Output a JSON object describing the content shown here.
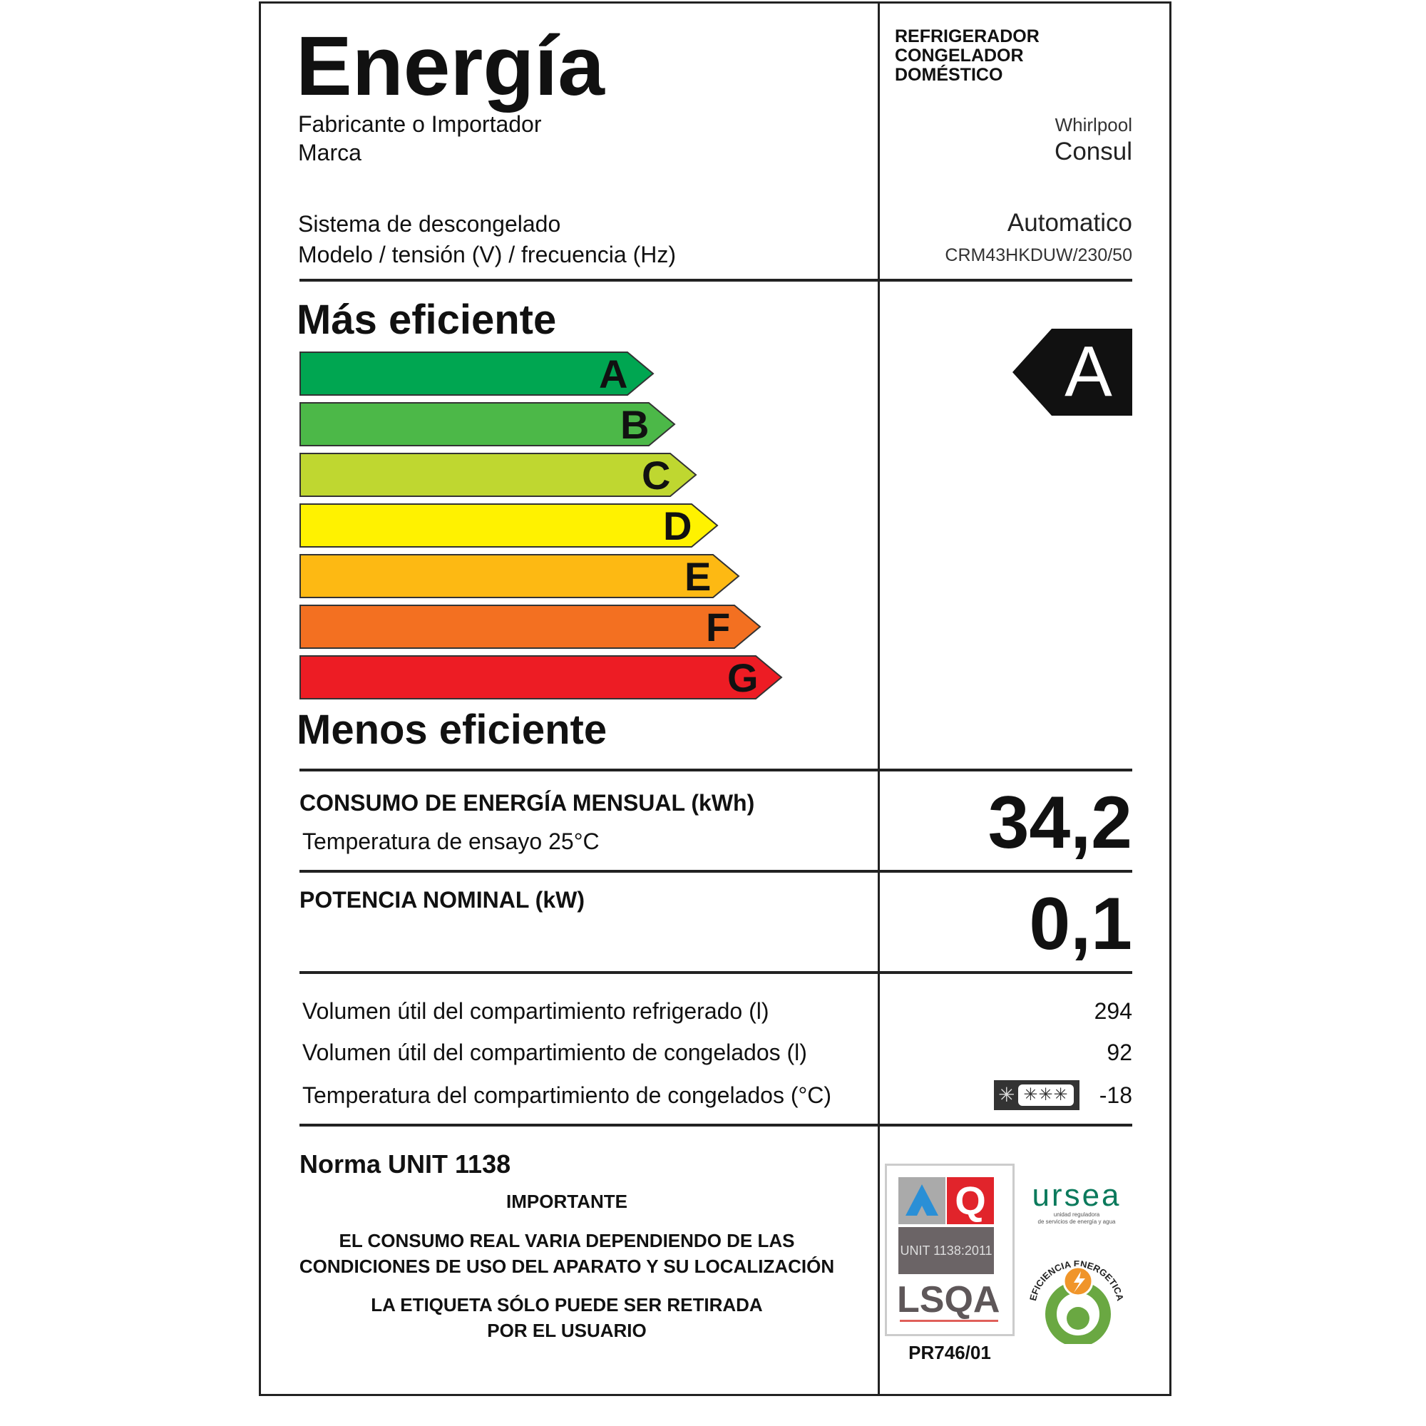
{
  "title": "Energía",
  "product_type": [
    "REFRIGERADOR",
    "CONGELADOR",
    "DOMÉSTICO"
  ],
  "info": [
    {
      "label": "Fabricante o Importador",
      "value": "Whirlpool"
    },
    {
      "label": "Marca",
      "value": "Consul"
    },
    {
      "label": "Sistema de descongelado",
      "value": "Automatico"
    },
    {
      "label": "Modelo / tensión (V) / frecuencia (Hz)",
      "value": "CRM43HKDUW/230/50"
    }
  ],
  "scale": {
    "top_label": "Más eficiente",
    "bottom_label": "Menos eficiente",
    "classes": [
      {
        "letter": "A",
        "color": "#00a651"
      },
      {
        "letter": "B",
        "color": "#4cb848"
      },
      {
        "letter": "C",
        "color": "#bfd730"
      },
      {
        "letter": "D",
        "color": "#fff200"
      },
      {
        "letter": "E",
        "color": "#fdb913"
      },
      {
        "letter": "F",
        "color": "#f37021"
      },
      {
        "letter": "G",
        "color": "#ed1c24"
      }
    ],
    "rating": "A"
  },
  "consumption": {
    "label": "CONSUMO DE ENERGÍA MENSUAL (kWh)",
    "sublabel": "Temperatura de ensayo 25°C",
    "value": "34,2"
  },
  "power": {
    "label": "POTENCIA NOMINAL (kW)",
    "value": "0,1"
  },
  "volumes": [
    {
      "label": "Volumen útil del compartimiento refrigerado (l)",
      "value": "294"
    },
    {
      "label": "Volumen útil del compartimiento de congelados (l)",
      "value": "92"
    },
    {
      "label": "Temperatura del compartimiento de congelados (°C)",
      "value": "-18",
      "icon": "freezer-four-star-icon"
    }
  ],
  "footer": {
    "norma": "Norma UNIT 1138",
    "important": "IMPORTANTE",
    "notice1": [
      "EL CONSUMO REAL VARIA DEPENDIENDO DE LAS",
      "CONDICIONES DE USO DEL APARATO Y SU LOCALIZACIÓN"
    ],
    "notice2": [
      "LA ETIQUETA SÓLO PUEDE SER RETIRADA",
      "POR EL USUARIO"
    ],
    "cert_code": "PR746/01",
    "lsqa": {
      "standard": "UNIT 1138:2011",
      "name": "LSQA"
    },
    "ursea": {
      "name": "ursea",
      "subtitle": [
        "unidad reguladora",
        "de servicios de energía y agua"
      ]
    },
    "efficiency_seal": "EFICIENCIA ENERGETICA"
  }
}
